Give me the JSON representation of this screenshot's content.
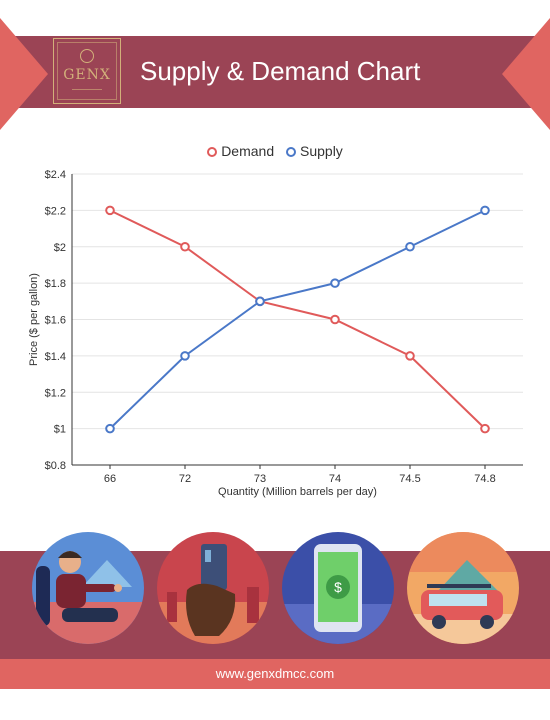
{
  "header": {
    "title": "Supply & Demand Chart",
    "logo_text": "GENX"
  },
  "colors": {
    "band": "#9b4455",
    "accent": "#e06561",
    "demand": "#e05a5a",
    "supply": "#4a78c8"
  },
  "chart_data": {
    "type": "line",
    "categories": [
      "66",
      "72",
      "73",
      "74",
      "74.5",
      "74.8"
    ],
    "series": [
      {
        "name": "Demand",
        "values": [
          2.2,
          2.0,
          1.7,
          1.6,
          1.4,
          1.0
        ]
      },
      {
        "name": "Supply",
        "values": [
          1.0,
          1.4,
          1.7,
          1.8,
          2.0,
          2.2
        ]
      }
    ],
    "title": "",
    "xlabel": "Quantity (Million barrels per day)",
    "ylabel": "Price ($ per gallon)",
    "ylim": [
      0.8,
      2.4
    ],
    "yticks": [
      "$0.8",
      "$1",
      "$1.2",
      "$1.4",
      "$1.6",
      "$1.8",
      "$2",
      "$2.2",
      "$2.4"
    ],
    "legend_position": "top-center",
    "grid": true
  },
  "illustrations": [
    {
      "icon": "driver-icon"
    },
    {
      "icon": "credit-card-icon"
    },
    {
      "icon": "mobile-money-icon"
    },
    {
      "icon": "car-trip-icon"
    }
  ],
  "footer": {
    "url": "www.genxdmcc.com"
  }
}
